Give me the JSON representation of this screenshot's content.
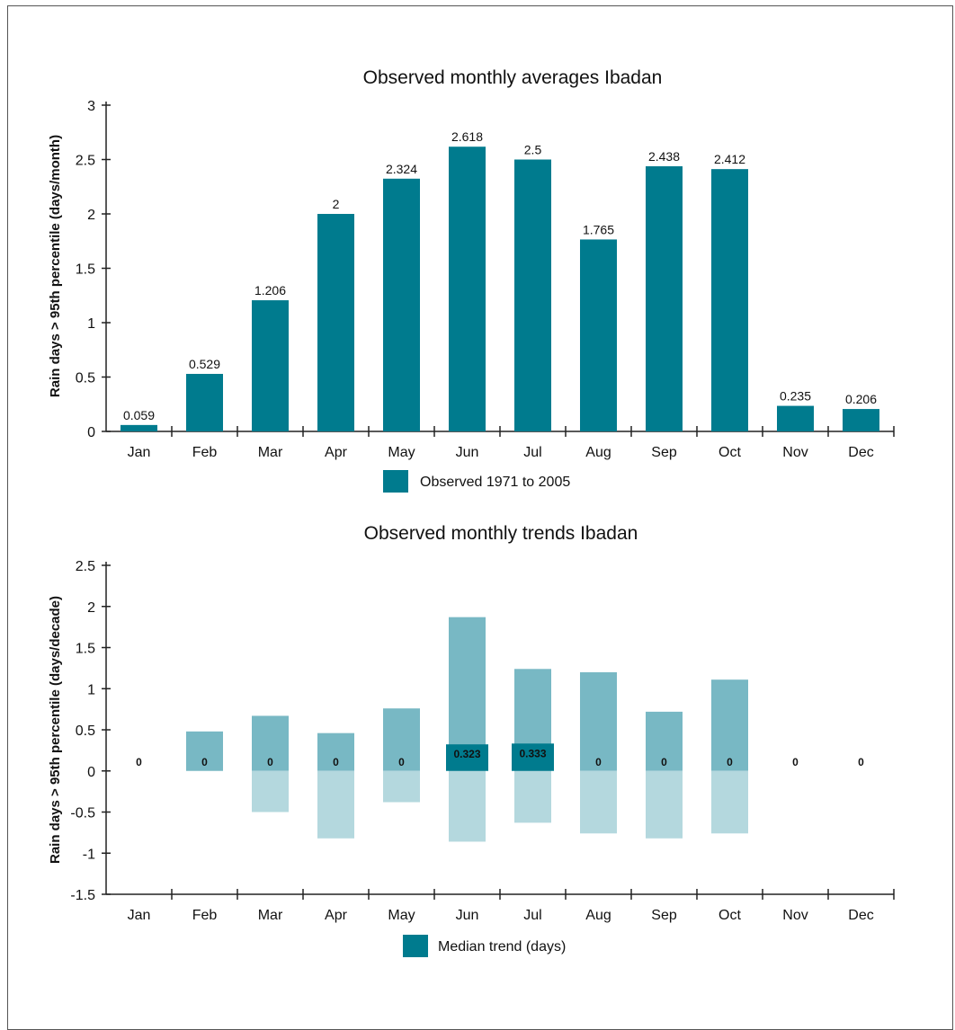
{
  "chart_data": [
    {
      "type": "bar",
      "title": "Observed monthly averages Ibadan",
      "ylabel": "Rain days > 95th percentile (days/month)",
      "xlabel": "",
      "ylim": [
        0,
        3
      ],
      "yticks": [
        "0",
        "0.5",
        "1",
        "1.5",
        "2",
        "2.5",
        "3"
      ],
      "ytick_values": [
        0,
        0.5,
        1,
        1.5,
        2,
        2.5,
        3
      ],
      "categories": [
        "Jan",
        "Feb",
        "Mar",
        "Apr",
        "May",
        "Jun",
        "Jul",
        "Aug",
        "Sep",
        "Oct",
        "Nov",
        "Dec"
      ],
      "series": [
        {
          "name": "Observed 1971 to 2005",
          "values": [
            0.059,
            0.529,
            1.206,
            2,
            2.324,
            2.618,
            2.5,
            1.765,
            2.438,
            2.412,
            0.235,
            0.206
          ],
          "labels": [
            "0.059",
            "0.529",
            "1.206",
            "2",
            "2.324",
            "2.618",
            "2.5",
            "1.765",
            "2.438",
            "2.412",
            "0.235",
            "0.206"
          ]
        }
      ],
      "legend": "bottom",
      "color": "#007b8e"
    },
    {
      "type": "bar",
      "title": "Observed monthly trends Ibadan",
      "ylabel": "Rain days > 95th percentile (days/decade)",
      "xlabel": "",
      "ylim": [
        -1.5,
        2.5
      ],
      "yticks": [
        "-1.5",
        "-1",
        "-0.5",
        "0",
        "0.5",
        "1",
        "1.5",
        "2",
        "2.5"
      ],
      "ytick_values": [
        -1.5,
        -1,
        -0.5,
        0,
        0.5,
        1,
        1.5,
        2,
        2.5
      ],
      "categories": [
        "Jan",
        "Feb",
        "Mar",
        "Apr",
        "May",
        "Jun",
        "Jul",
        "Aug",
        "Sep",
        "Oct",
        "Nov",
        "Dec"
      ],
      "series": [
        {
          "name": "Median trend (days)",
          "values": [
            0,
            0,
            0,
            0,
            0,
            0.323,
            0.333,
            0,
            0,
            0,
            0,
            0
          ],
          "labels": [
            "0",
            "0",
            "0",
            "0",
            "0",
            "0.323",
            "0.333",
            "0",
            "0",
            "0",
            "0",
            "0"
          ]
        },
        {
          "values": [
            0,
            0.48,
            0.67,
            0.46,
            0.76,
            1.87,
            1.24,
            1.2,
            0.72,
            1.11,
            0,
            0
          ]
        },
        {
          "values": [
            0,
            0,
            -0.5,
            -0.82,
            -0.38,
            -0.86,
            -0.63,
            -0.76,
            -0.82,
            -0.76,
            0,
            0
          ]
        }
      ],
      "legend": "bottom",
      "colors": {
        "median": "#007b8e",
        "upper": "#78b8c4",
        "lower": "#b4d8de"
      }
    }
  ]
}
